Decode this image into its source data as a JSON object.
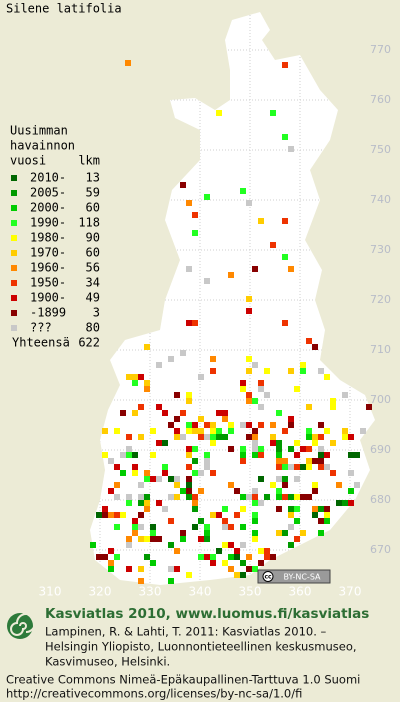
{
  "title": "Silene latifolia",
  "legend": {
    "heading": [
      "Uusimman",
      "havainnon",
      "vuosi"
    ],
    "count_heading": "lkm",
    "entries": [
      {
        "label": "2010-",
        "count": 13,
        "color": "#006600"
      },
      {
        "label": "2005-",
        "count": 59,
        "color": "#009900"
      },
      {
        "label": "2000-",
        "count": 60,
        "color": "#00cc00"
      },
      {
        "label": "1990-",
        "count": 118,
        "color": "#22ff22"
      },
      {
        "label": "1980-",
        "count": 90,
        "color": "#ffff00"
      },
      {
        "label": "1970-",
        "count": 60,
        "color": "#ffcc00"
      },
      {
        "label": "1960-",
        "count": 56,
        "color": "#ff8800"
      },
      {
        "label": "1950-",
        "count": 34,
        "color": "#ee3300"
      },
      {
        "label": "1900-",
        "count": 49,
        "color": "#cc0000"
      },
      {
        "label": "-1899",
        "count": 3,
        "color": "#880000"
      },
      {
        "label": "???",
        "count": 80,
        "color": "#c8c8c8"
      }
    ],
    "total": {
      "label": "Yhteensä",
      "count": 622
    }
  },
  "grid": {
    "xticks": [
      310,
      320,
      330,
      340,
      350,
      360,
      370
    ],
    "yticks": [
      670,
      680,
      690,
      700,
      710,
      720,
      730,
      740,
      750,
      760,
      770
    ]
  },
  "badge": {
    "icon": "cc",
    "text": "BY-NC-SA"
  },
  "footer": {
    "heading": "Kasviatlas 2010, www.luomus.fi/kasviatlas",
    "citation": [
      "Lampinen, R. & Lahti, T. 2011: Kasviatlas 2010. –",
      "Helsingin Yliopisto, Luonnontieteellinen keskusmuseo,",
      "Kasvimuseo, Helsinki."
    ],
    "license": [
      "Creative Commons Nimeä-Epäkaupallinen-Tarttuva 1.0 Suomi",
      "http://creativecommons.org/licenses/by-nc-sa/1.0/fi"
    ]
  }
}
